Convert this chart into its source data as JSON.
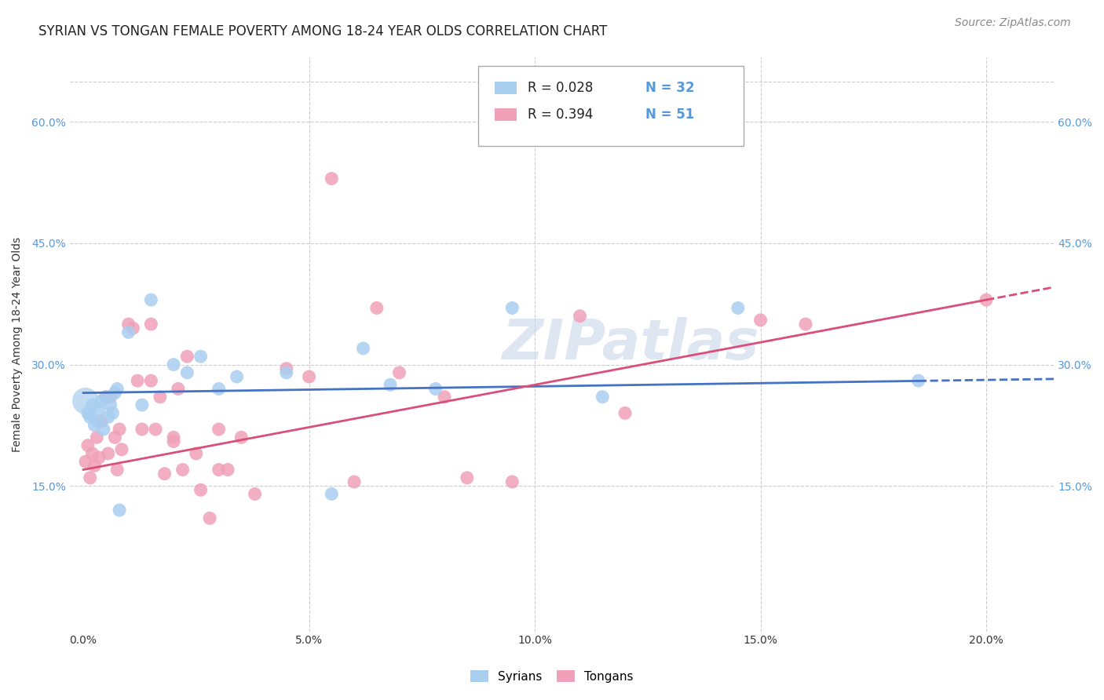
{
  "title": "SYRIAN VS TONGAN FEMALE POVERTY AMONG 18-24 YEAR OLDS CORRELATION CHART",
  "source": "Source: ZipAtlas.com",
  "xlabel_vals": [
    0.0,
    5.0,
    10.0,
    15.0,
    20.0
  ],
  "ylabel": "Female Poverty Among 18-24 Year Olds",
  "ylabel_vals": [
    15.0,
    30.0,
    45.0,
    60.0
  ],
  "ylim": [
    -3,
    68
  ],
  "xlim": [
    -0.3,
    21.5
  ],
  "legend_R_syrian": "R = 0.028",
  "legend_N_syrian": "N = 32",
  "legend_R_tongan": "R = 0.394",
  "legend_N_tongan": "N = 51",
  "legend_label_syrian": "Syrians",
  "legend_label_tongan": "Tongans",
  "color_syrian": "#a8cef0",
  "color_tongan": "#f0a0b8",
  "color_syrian_line": "#4472c4",
  "color_tongan_line": "#d94f7a",
  "color_tick": "#5599dd",
  "background_color": "#ffffff",
  "grid_color": "#cccccc",
  "watermark": "ZIPatlas",
  "syrian_x": [
    0.1,
    0.15,
    0.2,
    0.25,
    0.3,
    0.35,
    0.4,
    0.45,
    0.5,
    0.55,
    0.6,
    0.65,
    0.7,
    0.75,
    0.8,
    1.0,
    1.3,
    1.5,
    2.0,
    2.3,
    2.6,
    3.0,
    3.4,
    4.5,
    5.5,
    6.2,
    6.8,
    7.8,
    9.5,
    11.5,
    14.5,
    18.5
  ],
  "syrian_y": [
    24.0,
    23.5,
    25.0,
    22.5,
    23.0,
    24.5,
    25.5,
    22.0,
    26.0,
    23.5,
    25.0,
    24.0,
    26.5,
    27.0,
    12.0,
    34.0,
    25.0,
    38.0,
    30.0,
    29.0,
    31.0,
    27.0,
    28.5,
    29.0,
    14.0,
    32.0,
    27.5,
    27.0,
    37.0,
    26.0,
    37.0,
    28.0
  ],
  "tongan_x": [
    0.05,
    0.1,
    0.15,
    0.2,
    0.25,
    0.3,
    0.35,
    0.4,
    0.5,
    0.55,
    0.6,
    0.7,
    0.75,
    0.8,
    0.85,
    1.0,
    1.1,
    1.2,
    1.3,
    1.5,
    1.5,
    1.6,
    1.7,
    1.8,
    2.0,
    2.0,
    2.1,
    2.2,
    2.3,
    2.5,
    2.6,
    2.8,
    3.0,
    3.0,
    3.2,
    3.5,
    3.8,
    4.5,
    5.0,
    5.5,
    6.0,
    6.5,
    7.0,
    8.0,
    8.5,
    9.5,
    11.0,
    12.0,
    15.0,
    16.0,
    20.0
  ],
  "tongan_y": [
    18.0,
    20.0,
    16.0,
    19.0,
    17.5,
    21.0,
    18.5,
    23.0,
    26.0,
    19.0,
    26.0,
    21.0,
    17.0,
    22.0,
    19.5,
    35.0,
    34.5,
    28.0,
    22.0,
    35.0,
    28.0,
    22.0,
    26.0,
    16.5,
    21.0,
    20.5,
    27.0,
    17.0,
    31.0,
    19.0,
    14.5,
    11.0,
    17.0,
    22.0,
    17.0,
    21.0,
    14.0,
    29.5,
    28.5,
    53.0,
    15.5,
    37.0,
    29.0,
    26.0,
    16.0,
    15.5,
    36.0,
    24.0,
    35.5,
    35.0,
    38.0
  ],
  "title_fontsize": 12,
  "axis_label_fontsize": 10,
  "tick_fontsize": 10,
  "source_fontsize": 10
}
